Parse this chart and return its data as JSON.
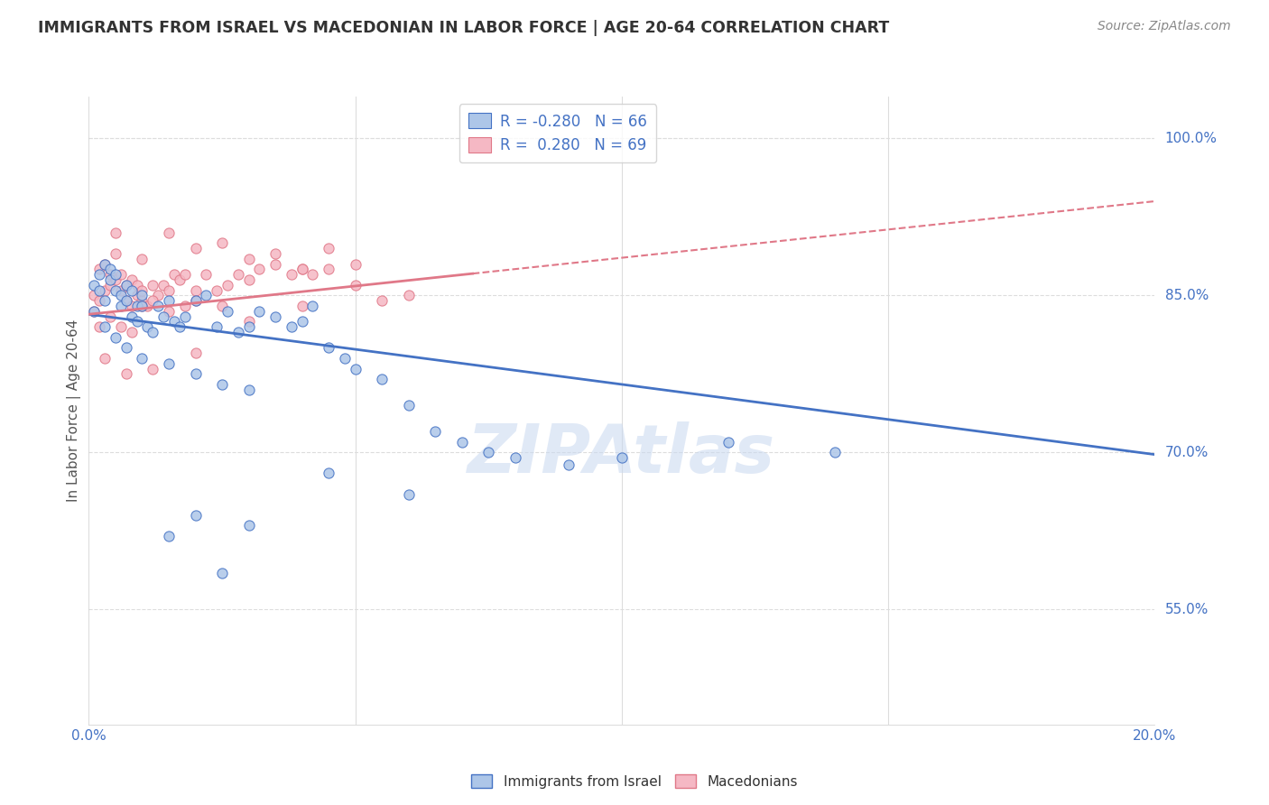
{
  "title": "IMMIGRANTS FROM ISRAEL VS MACEDONIAN IN LABOR FORCE | AGE 20-64 CORRELATION CHART",
  "source": "Source: ZipAtlas.com",
  "ylabel": "In Labor Force | Age 20-64",
  "xlim": [
    0.0,
    0.2
  ],
  "ylim": [
    0.44,
    1.04
  ],
  "xtick_positions": [
    0.0,
    0.05,
    0.1,
    0.15,
    0.2
  ],
  "xticklabels": [
    "0.0%",
    "",
    "",
    "",
    "20.0%"
  ],
  "ytick_positions": [
    0.55,
    0.7,
    0.85,
    1.0
  ],
  "ytick_labels": [
    "55.0%",
    "70.0%",
    "85.0%",
    "100.0%"
  ],
  "israel_color": "#adc6e8",
  "macedonian_color": "#f5b8c4",
  "israel_line_color": "#4472c4",
  "macedonian_line_color": "#e07888",
  "israel_R": -0.28,
  "israel_N": 66,
  "macedonian_R": 0.28,
  "macedonian_N": 69,
  "watermark": "ZIPAtlas",
  "watermark_color": "#c8d8f0",
  "israel_trend_x0": 0.0,
  "israel_trend_y0": 0.832,
  "israel_trend_x1": 0.2,
  "israel_trend_y1": 0.698,
  "macedonian_trend_x0": 0.0,
  "macedonian_trend_y0": 0.832,
  "macedonian_trend_x1": 0.2,
  "macedonian_trend_y1": 0.94,
  "israel_scatter_x": [
    0.001,
    0.001,
    0.002,
    0.002,
    0.003,
    0.003,
    0.004,
    0.004,
    0.005,
    0.005,
    0.006,
    0.006,
    0.007,
    0.007,
    0.008,
    0.008,
    0.009,
    0.009,
    0.01,
    0.01,
    0.011,
    0.012,
    0.013,
    0.014,
    0.015,
    0.016,
    0.017,
    0.018,
    0.02,
    0.022,
    0.024,
    0.026,
    0.028,
    0.03,
    0.032,
    0.035,
    0.038,
    0.04,
    0.042,
    0.045,
    0.048,
    0.05,
    0.055,
    0.06,
    0.065,
    0.07,
    0.075,
    0.08,
    0.09,
    0.1,
    0.003,
    0.005,
    0.007,
    0.01,
    0.015,
    0.02,
    0.025,
    0.03,
    0.12,
    0.14,
    0.015,
    0.02,
    0.025,
    0.03,
    0.045,
    0.06
  ],
  "israel_scatter_y": [
    0.835,
    0.86,
    0.855,
    0.87,
    0.88,
    0.845,
    0.865,
    0.875,
    0.87,
    0.855,
    0.85,
    0.84,
    0.86,
    0.845,
    0.855,
    0.83,
    0.84,
    0.825,
    0.84,
    0.85,
    0.82,
    0.815,
    0.84,
    0.83,
    0.845,
    0.825,
    0.82,
    0.83,
    0.845,
    0.85,
    0.82,
    0.835,
    0.815,
    0.82,
    0.835,
    0.83,
    0.82,
    0.825,
    0.84,
    0.8,
    0.79,
    0.78,
    0.77,
    0.745,
    0.72,
    0.71,
    0.7,
    0.695,
    0.688,
    0.695,
    0.82,
    0.81,
    0.8,
    0.79,
    0.785,
    0.775,
    0.765,
    0.76,
    0.71,
    0.7,
    0.62,
    0.64,
    0.585,
    0.63,
    0.68,
    0.66
  ],
  "macedonian_scatter_x": [
    0.001,
    0.001,
    0.002,
    0.002,
    0.003,
    0.003,
    0.004,
    0.004,
    0.005,
    0.005,
    0.006,
    0.006,
    0.007,
    0.007,
    0.008,
    0.008,
    0.009,
    0.009,
    0.01,
    0.01,
    0.011,
    0.012,
    0.013,
    0.014,
    0.015,
    0.016,
    0.017,
    0.018,
    0.02,
    0.022,
    0.024,
    0.026,
    0.028,
    0.03,
    0.032,
    0.035,
    0.038,
    0.04,
    0.042,
    0.045,
    0.002,
    0.004,
    0.006,
    0.008,
    0.01,
    0.012,
    0.015,
    0.018,
    0.02,
    0.025,
    0.005,
    0.01,
    0.015,
    0.02,
    0.025,
    0.03,
    0.035,
    0.04,
    0.045,
    0.05,
    0.003,
    0.007,
    0.012,
    0.02,
    0.03,
    0.04,
    0.05,
    0.055,
    0.06
  ],
  "macedonian_scatter_y": [
    0.85,
    0.835,
    0.875,
    0.845,
    0.88,
    0.855,
    0.87,
    0.86,
    0.89,
    0.865,
    0.855,
    0.87,
    0.845,
    0.86,
    0.865,
    0.84,
    0.85,
    0.86,
    0.845,
    0.855,
    0.84,
    0.86,
    0.85,
    0.86,
    0.855,
    0.87,
    0.865,
    0.87,
    0.855,
    0.87,
    0.855,
    0.86,
    0.87,
    0.865,
    0.875,
    0.88,
    0.87,
    0.875,
    0.87,
    0.875,
    0.82,
    0.83,
    0.82,
    0.815,
    0.84,
    0.845,
    0.835,
    0.84,
    0.845,
    0.84,
    0.91,
    0.885,
    0.91,
    0.895,
    0.9,
    0.885,
    0.89,
    0.875,
    0.895,
    0.88,
    0.79,
    0.775,
    0.78,
    0.795,
    0.825,
    0.84,
    0.86,
    0.845,
    0.85
  ],
  "background_color": "#ffffff",
  "grid_color": "#dddddd",
  "axis_color": "#4472c4",
  "title_color": "#333333"
}
